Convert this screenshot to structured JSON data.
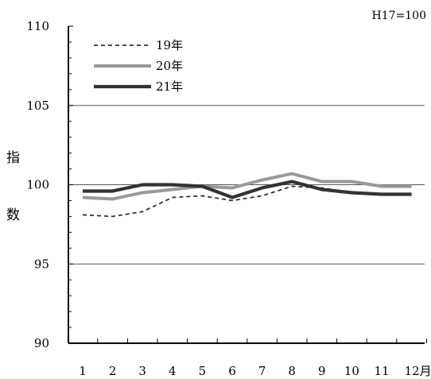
{
  "chart_data": {
    "type": "line",
    "note": "H17=100",
    "ylabel_top": "指",
    "ylabel_bottom": "数",
    "ylim": [
      90,
      110
    ],
    "yticks": [
      90,
      95,
      100,
      105,
      110
    ],
    "yminor_step": 1,
    "grid_major": [
      95,
      100,
      105
    ],
    "x": [
      "1",
      "2",
      "3",
      "4",
      "5",
      "6",
      "7",
      "8",
      "9",
      "10",
      "11",
      "12"
    ],
    "x_last_suffix": "月",
    "legend_position": "top-left",
    "series": [
      {
        "name": "19年",
        "color": "#333333",
        "style": "dashed",
        "values": [
          98.1,
          98.0,
          98.3,
          99.2,
          99.3,
          99.0,
          99.3,
          99.9,
          99.8,
          99.5,
          99.4,
          99.4
        ]
      },
      {
        "name": "20年",
        "color": "#999999",
        "style": "solid",
        "values": [
          99.2,
          99.1,
          99.5,
          99.7,
          99.9,
          99.8,
          100.3,
          100.7,
          100.2,
          100.2,
          99.9,
          99.9
        ]
      },
      {
        "name": "21年",
        "color": "#333333",
        "style": "solid",
        "values": [
          99.6,
          99.6,
          100.0,
          100.0,
          99.9,
          99.2,
          99.8,
          100.2,
          99.7,
          99.5,
          99.4,
          99.4
        ]
      }
    ]
  }
}
